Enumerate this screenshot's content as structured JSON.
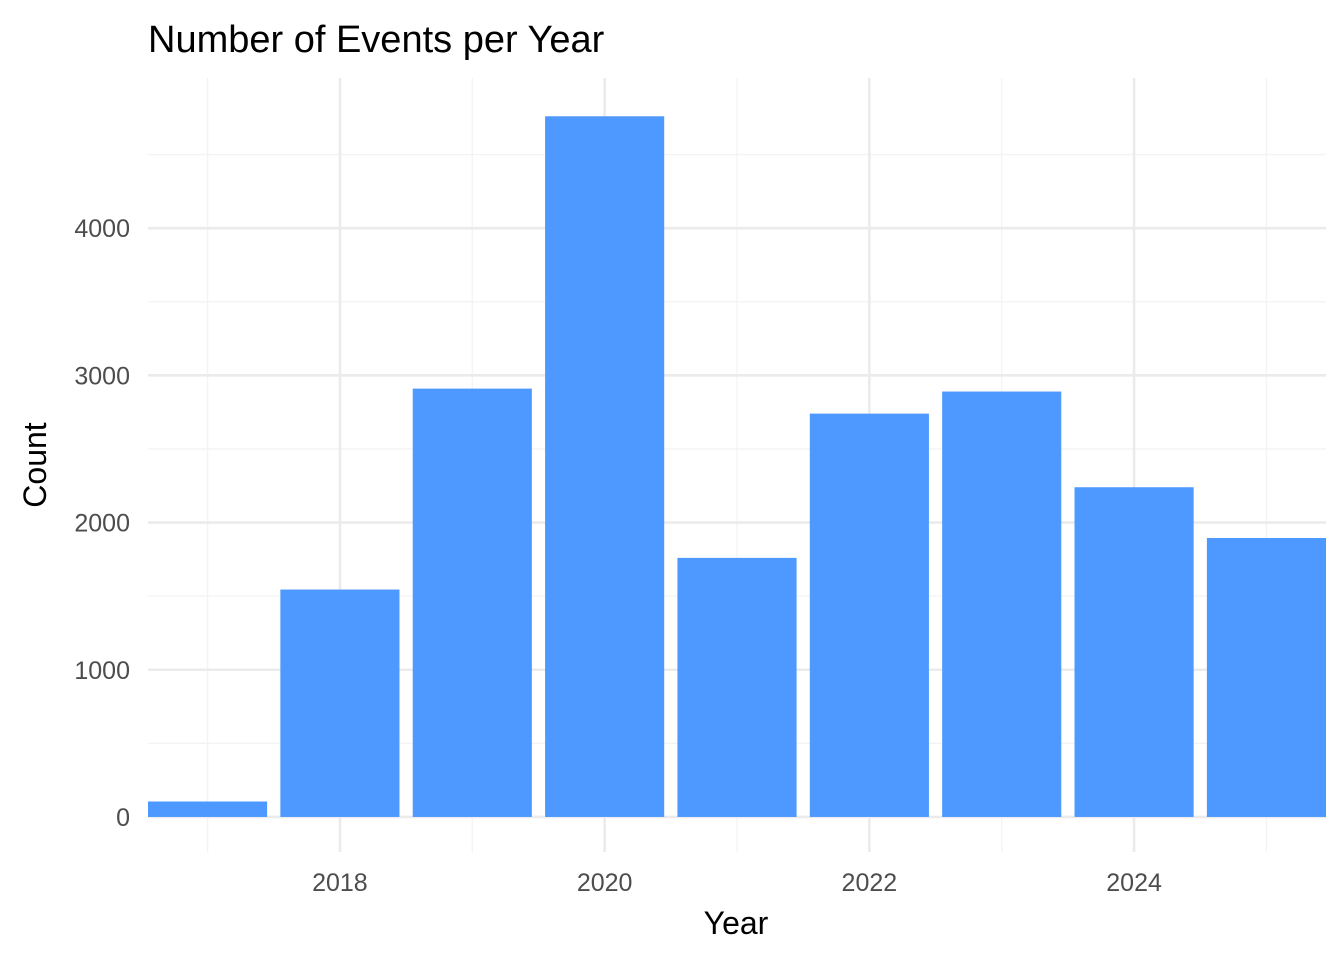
{
  "chart_data": {
    "type": "bar",
    "title": "Number of Events per Year",
    "xlabel": "Year",
    "ylabel": "Count",
    "x": [
      2017,
      2018,
      2019,
      2020,
      2021,
      2022,
      2023,
      2024,
      2025
    ],
    "values": [
      105,
      1545,
      2910,
      4760,
      1760,
      2740,
      2890,
      2240,
      1895
    ],
    "xlim": [
      2016.55,
      2025.45
    ],
    "ylim": [
      -238,
      5020
    ],
    "x_ticks": [
      2018,
      2020,
      2022,
      2024
    ],
    "x_tick_labels": [
      "2018",
      "2020",
      "2022",
      "2024"
    ],
    "y_ticks": [
      0,
      1000,
      2000,
      3000,
      4000
    ],
    "y_tick_labels": [
      "0",
      "1000",
      "2000",
      "3000",
      "4000"
    ],
    "bar_color": "#4D99FF",
    "grid": true,
    "legend": "none"
  }
}
